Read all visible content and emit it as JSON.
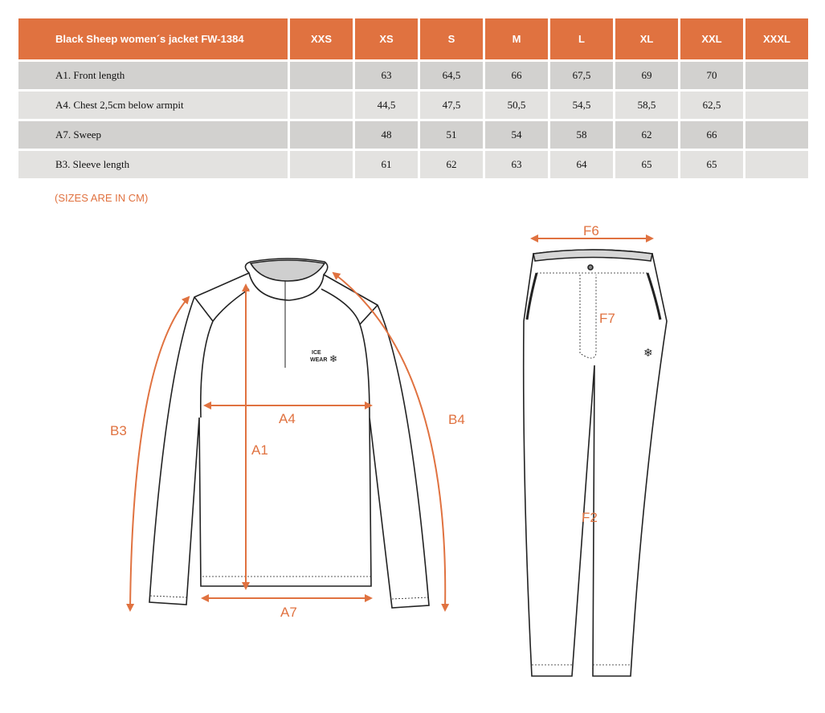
{
  "table": {
    "title": "Black Sheep women´s jacket FW-1384",
    "sizes": [
      "XXS",
      "XS",
      "S",
      "M",
      "L",
      "XL",
      "XXL",
      "XXXL"
    ],
    "rows": [
      {
        "label": "A1. Front length",
        "values": [
          "",
          "63",
          "64,5",
          "66",
          "67,5",
          "69",
          "70",
          ""
        ]
      },
      {
        "label": "A4. Chest 2,5cm below armpit",
        "values": [
          "",
          "44,5",
          "47,5",
          "50,5",
          "54,5",
          "58,5",
          "62,5",
          ""
        ]
      },
      {
        "label": "A7. Sweep",
        "values": [
          "",
          "48",
          "51",
          "54",
          "58",
          "62",
          "66",
          ""
        ]
      },
      {
        "label": "B3. Sleeve length",
        "values": [
          "",
          "61",
          "62",
          "63",
          "64",
          "65",
          "65",
          ""
        ]
      }
    ]
  },
  "note": "(SIZES ARE IN CM)",
  "diagram": {
    "jacket_labels": {
      "a1": "A1",
      "a4": "A4",
      "a7": "A7",
      "b3": "B3",
      "b4": "B4"
    },
    "pants_labels": {
      "f6": "F6",
      "f7": "F7",
      "f2": "F2"
    },
    "logo_text": [
      "ICE",
      "WEAR"
    ],
    "accent_color": "#e07240"
  }
}
